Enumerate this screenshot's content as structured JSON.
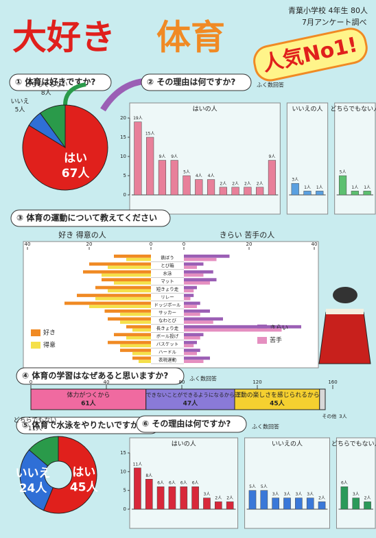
{
  "poster": {
    "title_main": "大好き",
    "title_sub": "体育",
    "badge": "人気No1!",
    "school": "青葉小学校 4年生 80人",
    "survey": "7月アンケート調べ"
  },
  "chart_data": [
    {
      "type": "pie",
      "title": "① 体育は好きですか?",
      "categories": [
        "はい",
        "いいえ",
        "どちらでもない"
      ],
      "values": [
        67,
        5,
        8
      ],
      "value_labels": [
        "67人",
        "5人",
        "8人"
      ],
      "colors": [
        "#e0201c",
        "#2f6fd6",
        "#2a9a4a"
      ]
    },
    {
      "type": "bar",
      "title": "② その理由は何ですか?",
      "subtitle": "ふく数回答",
      "ylim": [
        0,
        20
      ],
      "yticks": [
        0,
        5,
        10,
        15,
        20
      ],
      "series": [
        {
          "name": "はいの人",
          "color": "#e8809a",
          "values": [
            19,
            15,
            9,
            9,
            5,
            4,
            4,
            2,
            2,
            2,
            2,
            9
          ],
          "value_labels": [
            "19人",
            "15人",
            "9人",
            "9人",
            "5人",
            "4人",
            "4人",
            "2人",
            "2人",
            "2人",
            "2人",
            "9人"
          ]
        },
        {
          "name": "いいえの人",
          "color": "#5aa0e0",
          "values": [
            3,
            1,
            1
          ],
          "value_labels": [
            "3人",
            "1人",
            "1人"
          ]
        },
        {
          "name": "どちらでもない人",
          "color": "#5cc070",
          "values": [
            5,
            1,
            1
          ],
          "value_labels": [
            "5人",
            "1人",
            "1人"
          ]
        }
      ]
    },
    {
      "type": "butterfly",
      "title": "③ 体育の運動について教えてください",
      "left_label": "好き 得意の人",
      "right_label": "きらい 苦手の人",
      "categories": [
        "鉄ぼう",
        "とび箱",
        "水泳",
        "マット",
        "短きょり走",
        "リレー",
        "ドッジボール",
        "サッカー",
        "なわとび",
        "長きょり走",
        "ボール投げ",
        "バスケット",
        "ハードル",
        "表現運動"
      ],
      "xlim": [
        0,
        40
      ],
      "xticks": [
        0,
        20,
        40
      ],
      "series": [
        {
          "name": "好き",
          "side": "left",
          "color": "#f08a24",
          "values": [
            12,
            20,
            22,
            16,
            18,
            24,
            28,
            15,
            14,
            8,
            12,
            14,
            10,
            6
          ]
        },
        {
          "name": "得意",
          "side": "left",
          "color": "#f5e04a",
          "values": [
            8,
            14,
            16,
            12,
            14,
            18,
            20,
            10,
            10,
            6,
            8,
            10,
            6,
            4
          ]
        },
        {
          "name": "きらい",
          "side": "right",
          "color": "#9b5fb5",
          "values": [
            14,
            6,
            9,
            10,
            4,
            3,
            5,
            8,
            12,
            36,
            6,
            4,
            5,
            8
          ]
        },
        {
          "name": "苦手",
          "side": "right",
          "color": "#e58fc0",
          "values": [
            10,
            4,
            6,
            8,
            3,
            2,
            4,
            5,
            9,
            30,
            5,
            3,
            4,
            6
          ]
        }
      ]
    },
    {
      "type": "stacked_bar",
      "title": "④ 体育の学習はなぜあると思いますか?",
      "subtitle": "ふく数回答",
      "categories": [
        "体力がつくから",
        "できないことができるようになるから",
        "運動の楽しさを感じられるから",
        "その他"
      ],
      "values": [
        61,
        47,
        45,
        3
      ],
      "value_labels": [
        "61人",
        "47人",
        "45人",
        "3人"
      ],
      "colors": [
        "#f06aa0",
        "#8a7ad8",
        "#f5d030",
        "#d8d8d8"
      ],
      "xlim": [
        0,
        160
      ],
      "xticks": [
        0,
        40,
        80,
        120,
        160
      ]
    },
    {
      "type": "donut",
      "title": "⑤ 体育で水泳をやりたいですか?",
      "categories": [
        "はい",
        "いいえ",
        "どちらでもない"
      ],
      "values": [
        45,
        24,
        11
      ],
      "value_labels": [
        "45人",
        "24人",
        "11人"
      ],
      "colors": [
        "#e0201c",
        "#2f6fd6",
        "#2a9a4a"
      ]
    },
    {
      "type": "bar",
      "title": "⑥ その理由は何ですか?",
      "subtitle": "ふく数回答",
      "ylim": [
        0,
        15
      ],
      "yticks": [
        0,
        5,
        10,
        15
      ],
      "series": [
        {
          "name": "はいの人",
          "color": "#d8283a",
          "values": [
            11,
            8,
            6,
            6,
            6,
            6,
            3,
            2,
            2
          ],
          "value_labels": [
            "11人",
            "8人",
            "6人",
            "6人",
            "6人",
            "6人",
            "3人",
            "2人",
            "2人"
          ]
        },
        {
          "name": "いいえの人",
          "color": "#3a78d8",
          "values": [
            5,
            5,
            3,
            3,
            3,
            3,
            2
          ],
          "value_labels": [
            "5人",
            "5人",
            "3人",
            "3人",
            "3人",
            "3人",
            "2人"
          ]
        },
        {
          "name": "どちらでもない人",
          "color": "#2a9a5a",
          "values": [
            6,
            3,
            2
          ],
          "value_labels": [
            "6人",
            "3人",
            "2人"
          ]
        }
      ]
    }
  ]
}
